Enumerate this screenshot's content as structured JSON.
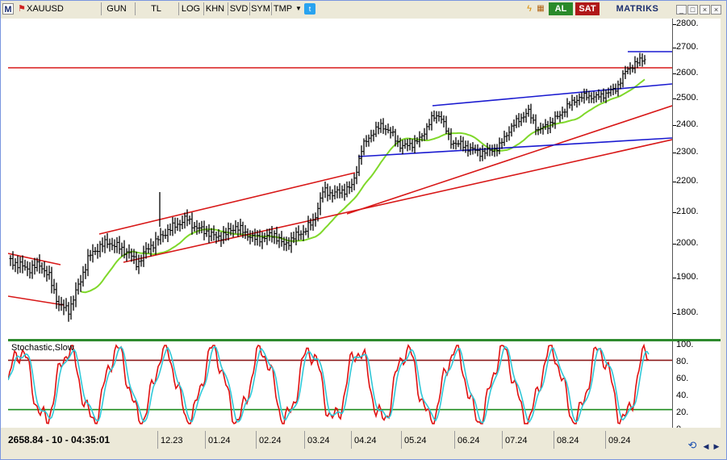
{
  "toolbar": {
    "app_icon": "M",
    "symbol": "XAUUSD",
    "buttons": [
      "GUN",
      "TL",
      "LOG",
      "KHN",
      "SVD",
      "SYM",
      "TMP"
    ],
    "buy_label": "AL",
    "sell_label": "SAT",
    "brand": "MATRIKS",
    "icons": [
      "flag-icon",
      "dropdown-icon",
      "twitter-icon",
      "lightning-icon",
      "calendar-icon",
      "minimize-icon",
      "maximize-icon",
      "close-icon"
    ]
  },
  "stochastic": {
    "title": "Stochastic,Slow",
    "y_labels": [
      "100.",
      "80.",
      "60.",
      "40.",
      "20.",
      "0."
    ]
  },
  "price_axis": {
    "labels": [
      "2800.",
      "2700.",
      "2600.",
      "2500.",
      "2400.",
      "2300.",
      "2200.",
      "2100.",
      "2000.",
      "1900.",
      "1800."
    ]
  },
  "status": {
    "readout": "2658.84 - 10 - 04:35:01"
  },
  "x_axis": {
    "labels": [
      "12.23",
      "01.24",
      "02.24",
      "03.24",
      "04.24",
      "05.24",
      "06.24",
      "07.24",
      "08.24",
      "09.24"
    ]
  },
  "colors": {
    "price_bars": "#000000",
    "moving_average": "#7fd82a",
    "red_channel": "#d81818",
    "blue_channel": "#1a1ad0",
    "stoch_k": "#e01010",
    "stoch_d": "#30c8d8",
    "stoch_upper": "#8b1a1a",
    "stoch_lower": "#1a8a1a"
  },
  "chart_data": {
    "type": "ohlc",
    "series": [
      {
        "name": "XAUUSD",
        "values_approx": [
          1950,
          1935,
          1925,
          1940,
          1900,
          1820,
          1810,
          1880,
          1960,
          1990,
          2005,
          1990,
          1975,
          1940,
          1985,
          2010,
          2040,
          2060,
          2080,
          2050,
          2040,
          2020,
          2030,
          2055,
          2035,
          2015,
          2020,
          2030,
          1995,
          2020,
          2040,
          2070,
          2170,
          2160,
          2170,
          2185,
          2320,
          2370,
          2400,
          2370,
          2320,
          2330,
          2350,
          2420,
          2440,
          2340,
          2330,
          2315,
          2300,
          2305,
          2320,
          2380,
          2420,
          2450,
          2380,
          2400,
          2430,
          2470,
          2500,
          2510,
          2505,
          2520,
          2540,
          2610,
          2640,
          2660
        ]
      }
    ],
    "ylim": [
      1770,
      2810
    ],
    "stochastic_range": [
      0,
      100
    ],
    "stochastic_levels": [
      20,
      80
    ]
  }
}
